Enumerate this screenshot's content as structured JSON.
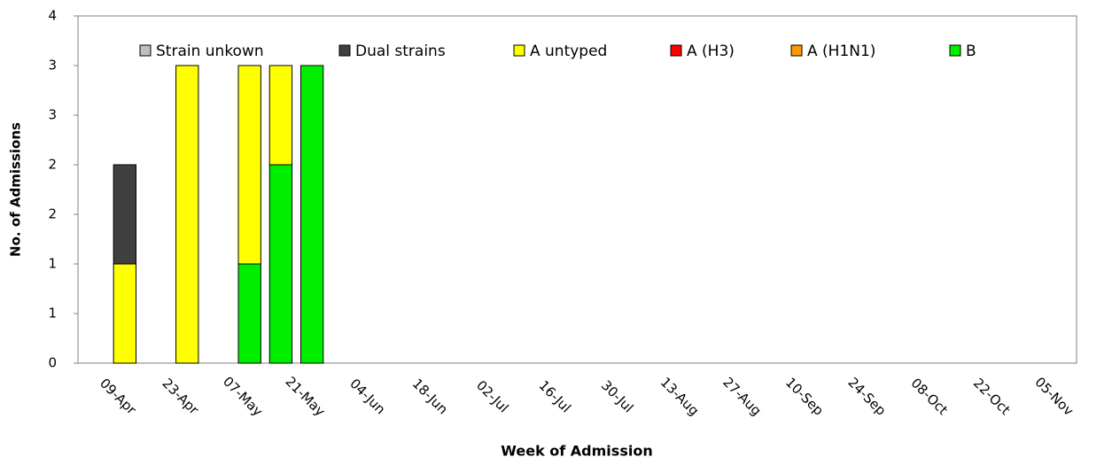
{
  "chart_data": {
    "type": "stacked-bar",
    "y_label": "No. of Admissions",
    "x_label": "Week of Admission",
    "categories": [
      null,
      "09-Apr",
      null,
      "23-Apr",
      null,
      "07-May",
      null,
      "21-May",
      null,
      "04-Jun",
      null,
      "18-Jun",
      null,
      "02-Jul",
      null,
      "16-Jul",
      null,
      "30-Jul",
      null,
      "13-Aug",
      null,
      "27-Aug",
      null,
      "10-Sep",
      null,
      "24-Sep",
      null,
      "08-Oct",
      null,
      "22-Oct",
      null,
      "05-Nov"
    ],
    "series": [
      {
        "name": "Strain unkown",
        "color": "#c0c0c0",
        "values": [
          0,
          0,
          0,
          0,
          0,
          0,
          0,
          0,
          0,
          0,
          0,
          0,
          0,
          0,
          0,
          0,
          0,
          0,
          0,
          0,
          0,
          0,
          0,
          0,
          0,
          0,
          0,
          0,
          0,
          0,
          0,
          0
        ]
      },
      {
        "name": "Dual strains",
        "color": "#404040",
        "values": [
          0,
          1,
          0,
          0,
          0,
          0,
          0,
          0,
          0,
          0,
          0,
          0,
          0,
          0,
          0,
          0,
          0,
          0,
          0,
          0,
          0,
          0,
          0,
          0,
          0,
          0,
          0,
          0,
          0,
          0,
          0,
          0
        ]
      },
      {
        "name": "A untyped",
        "color": "#ffff00",
        "values": [
          0,
          1,
          0,
          3,
          0,
          2,
          1,
          0,
          0,
          0,
          0,
          0,
          0,
          0,
          0,
          0,
          0,
          0,
          0,
          0,
          0,
          0,
          0,
          0,
          0,
          0,
          0,
          0,
          0,
          0,
          0,
          0
        ]
      },
      {
        "name": "A (H3)",
        "color": "#ff0000",
        "values": [
          0,
          0,
          0,
          0,
          0,
          0,
          0,
          0,
          0,
          0,
          0,
          0,
          0,
          0,
          0,
          0,
          0,
          0,
          0,
          0,
          0,
          0,
          0,
          0,
          0,
          0,
          0,
          0,
          0,
          0,
          0,
          0
        ]
      },
      {
        "name": "A (H1N1)",
        "color": "#ff9900",
        "values": [
          0,
          0,
          0,
          0,
          0,
          0,
          0,
          0,
          0,
          0,
          0,
          0,
          0,
          0,
          0,
          0,
          0,
          0,
          0,
          0,
          0,
          0,
          0,
          0,
          0,
          0,
          0,
          0,
          0,
          0,
          0,
          0
        ]
      },
      {
        "name": "B",
        "color": "#00ee00",
        "values": [
          0,
          0,
          0,
          0,
          0,
          1,
          2,
          3,
          0,
          0,
          0,
          0,
          0,
          0,
          0,
          0,
          0,
          0,
          0,
          0,
          0,
          0,
          0,
          0,
          0,
          0,
          0,
          0,
          0,
          0,
          0,
          0
        ]
      }
    ],
    "ylim": [
      0,
      3.5
    ],
    "yticks": [
      0,
      {
        "value": 0.5,
        "label": "1"
      },
      1,
      {
        "value": 1.5,
        "label": "2"
      },
      2,
      {
        "value": 2.5,
        "label": "3"
      },
      3,
      {
        "value": 3.5,
        "label": "4"
      }
    ],
    "grid": false
  }
}
